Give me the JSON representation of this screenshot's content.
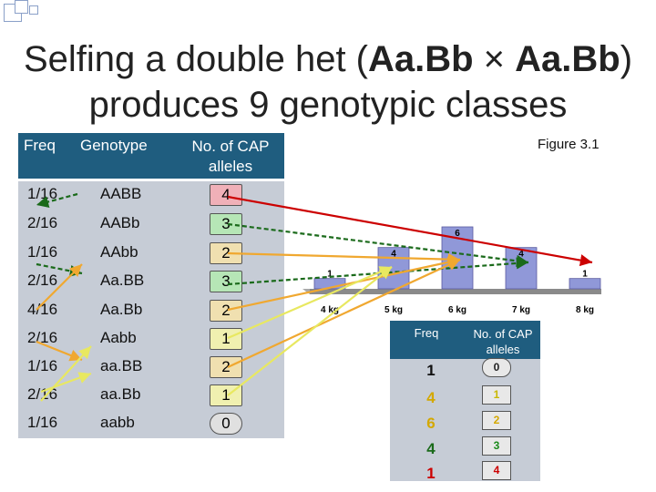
{
  "title": {
    "line1_pre": "Selfing a double het (",
    "line1_bold": "Aa.Bb",
    "line1_mid": " × ",
    "line1_bold2": "Aa.Bb",
    "line1_post": ")",
    "line2": "produces 9 genotypic classes"
  },
  "figure_label": "Figure 3.1",
  "left_table": {
    "headers": {
      "freq": "Freq",
      "genotype": "Genotype",
      "cap": "No. of CAP alleles"
    },
    "rows": [
      {
        "freq": "1/16",
        "genotype": "AABB",
        "cap": "4",
        "color": "#f0b0b8"
      },
      {
        "freq": "2/16",
        "genotype": "AABb",
        "cap": "3",
        "color": "#b6e6b6"
      },
      {
        "freq": "1/16",
        "genotype": "AAbb",
        "cap": "2",
        "color": "#f0e0b0"
      },
      {
        "freq": "2/16",
        "genotype": "Aa.BB",
        "cap": "3",
        "color": "#b6e6b6"
      },
      {
        "freq": "4/16",
        "genotype": "Aa.Bb",
        "cap": "2",
        "color": "#f0e0b0"
      },
      {
        "freq": "2/16",
        "genotype": "Aabb",
        "cap": "1",
        "color": "#f0f0b0"
      },
      {
        "freq": "1/16",
        "genotype": "aa.BB",
        "cap": "2",
        "color": "#f0e0b0"
      },
      {
        "freq": "2/16",
        "genotype": "aa.Bb",
        "cap": "1",
        "color": "#f0f0b0"
      },
      {
        "freq": "1/16",
        "genotype": "aabb",
        "cap": "0",
        "color": "#e0e0e0"
      }
    ]
  },
  "right_table": {
    "headers": {
      "freq": "Freq",
      "cap": "No. of CAP alleles"
    },
    "rows": [
      {
        "freq": "1",
        "cap": "0",
        "freq_color": "#111111",
        "cap_color": "#222222"
      },
      {
        "freq": "4",
        "cap": "1",
        "freq_color": "#d4a800",
        "cap_color": "#c8b800"
      },
      {
        "freq": "6",
        "cap": "2",
        "freq_color": "#d4a800",
        "cap_color": "#d4a800"
      },
      {
        "freq": "4",
        "cap": "3",
        "freq_color": "#1a6a1a",
        "cap_color": "#1a8a1a"
      },
      {
        "freq": "1",
        "cap": "4",
        "freq_color": "#cc0000",
        "cap_color": "#cc0000"
      }
    ]
  },
  "chart_data": {
    "type": "bar",
    "categories": [
      "4 kg",
      "5 kg",
      "6 kg",
      "7 kg",
      "8 kg"
    ],
    "values": [
      1,
      4,
      6,
      4,
      1
    ],
    "data_labels": [
      "1",
      "4",
      "6",
      "4",
      "1"
    ],
    "title": "",
    "xlabel": "",
    "ylabel": "",
    "grid": false,
    "bar_color": "#9098d8"
  },
  "colors": {
    "header_bg": "#1f5d7f",
    "table_bg": "#c6ccd6",
    "arrow_red": "#cc0000",
    "arrow_green": "#1a6a1a",
    "arrow_orange": "#f0a830",
    "arrow_yellow": "#e8e860"
  }
}
